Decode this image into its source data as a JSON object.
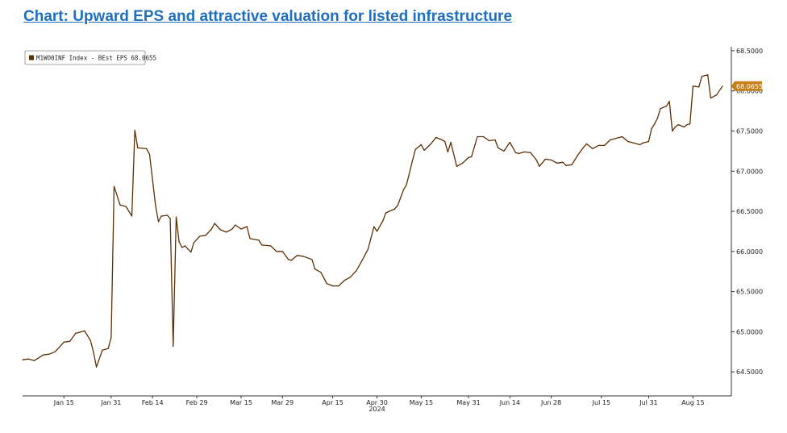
{
  "page": {
    "title": "Chart: Upward EPS and attractive valuation for listed infrastructure"
  },
  "chart_data": {
    "type": "line",
    "legend": {
      "label": "M1WO0INF Index - BEst EPS 68.0655",
      "position": "top-left"
    },
    "last_value_label": "68.0655",
    "x_tick_labels": [
      "Jan 15",
      "Jan 31",
      "Feb 14",
      "Feb 29",
      "Mar 15",
      "Mar 29",
      "Apr 15",
      "Apr 30",
      "May 15",
      "May 31",
      "Jun 14",
      "Jun 28",
      "Jul 15",
      "Jul 31",
      "Aug 15"
    ],
    "x_sublabel": "2024",
    "y_tick_labels": [
      "64.5000",
      "65.0000",
      "65.5000",
      "66.0000",
      "66.5000",
      "67.0000",
      "67.5000",
      "68.0000",
      "68.5000"
    ],
    "ylim": [
      64.2,
      68.55
    ],
    "xlim": [
      "2024-01-01",
      "2024-08-28"
    ],
    "grid": false,
    "line_color": "#5a3005",
    "series": [
      {
        "name": "M1WO0INF Index - BEst EPS",
        "points": [
          [
            "2024-01-01",
            64.65
          ],
          [
            "2024-01-03",
            64.66
          ],
          [
            "2024-01-05",
            64.64
          ],
          [
            "2024-01-08",
            64.71
          ],
          [
            "2024-01-10",
            64.72
          ],
          [
            "2024-01-12",
            64.75
          ],
          [
            "2024-01-15",
            64.87
          ],
          [
            "2024-01-17",
            64.88
          ],
          [
            "2024-01-19",
            64.98
          ],
          [
            "2024-01-22",
            65.01
          ],
          [
            "2024-01-24",
            64.89
          ],
          [
            "2024-01-25",
            64.75
          ],
          [
            "2024-01-26",
            64.56
          ],
          [
            "2024-01-28",
            64.77
          ],
          [
            "2024-01-30",
            64.79
          ],
          [
            "2024-01-31",
            64.93
          ],
          [
            "2024-02-01",
            66.81
          ],
          [
            "2024-02-03",
            66.58
          ],
          [
            "2024-02-05",
            66.56
          ],
          [
            "2024-02-07",
            66.44
          ],
          [
            "2024-02-08",
            67.51
          ],
          [
            "2024-02-09",
            67.29
          ],
          [
            "2024-02-12",
            67.28
          ],
          [
            "2024-02-13",
            67.21
          ],
          [
            "2024-02-15",
            66.58
          ],
          [
            "2024-02-16",
            66.37
          ],
          [
            "2024-02-17",
            66.44
          ],
          [
            "2024-02-19",
            66.45
          ],
          [
            "2024-02-20",
            66.41
          ],
          [
            "2024-02-21",
            64.82
          ],
          [
            "2024-02-22",
            66.43
          ],
          [
            "2024-02-23",
            66.12
          ],
          [
            "2024-02-24",
            66.05
          ],
          [
            "2024-02-25",
            66.07
          ],
          [
            "2024-02-27",
            65.99
          ],
          [
            "2024-02-28",
            66.11
          ],
          [
            "2024-03-01",
            66.19
          ],
          [
            "2024-03-03",
            66.2
          ],
          [
            "2024-03-05",
            66.28
          ],
          [
            "2024-03-06",
            66.35
          ],
          [
            "2024-03-08",
            66.27
          ],
          [
            "2024-03-10",
            66.24
          ],
          [
            "2024-03-12",
            66.28
          ],
          [
            "2024-03-13",
            66.33
          ],
          [
            "2024-03-15",
            66.28
          ],
          [
            "2024-03-17",
            66.31
          ],
          [
            "2024-03-18",
            66.16
          ],
          [
            "2024-03-21",
            66.14
          ],
          [
            "2024-03-22",
            66.08
          ],
          [
            "2024-03-25",
            66.07
          ],
          [
            "2024-03-27",
            66.0
          ],
          [
            "2024-03-29",
            66.0
          ],
          [
            "2024-03-31",
            65.9
          ],
          [
            "2024-04-01",
            65.89
          ],
          [
            "2024-04-03",
            65.95
          ],
          [
            "2024-04-05",
            65.94
          ],
          [
            "2024-04-08",
            65.9
          ],
          [
            "2024-04-09",
            65.78
          ],
          [
            "2024-04-11",
            65.74
          ],
          [
            "2024-04-13",
            65.6
          ],
          [
            "2024-04-15",
            65.57
          ],
          [
            "2024-04-17",
            65.57
          ],
          [
            "2024-04-19",
            65.64
          ],
          [
            "2024-04-21",
            65.68
          ],
          [
            "2024-04-23",
            65.76
          ],
          [
            "2024-04-25",
            65.89
          ],
          [
            "2024-04-27",
            66.03
          ],
          [
            "2024-04-29",
            66.31
          ],
          [
            "2024-04-30",
            66.25
          ],
          [
            "2024-05-02",
            66.38
          ],
          [
            "2024-05-03",
            66.48
          ],
          [
            "2024-05-06",
            66.53
          ],
          [
            "2024-05-07",
            66.57
          ],
          [
            "2024-05-09",
            66.77
          ],
          [
            "2024-05-10",
            66.83
          ],
          [
            "2024-05-12",
            67.13
          ],
          [
            "2024-05-13",
            67.27
          ],
          [
            "2024-05-15",
            67.33
          ],
          [
            "2024-05-16",
            67.26
          ],
          [
            "2024-05-18",
            67.33
          ],
          [
            "2024-05-20",
            67.42
          ],
          [
            "2024-05-22",
            67.39
          ],
          [
            "2024-05-23",
            67.37
          ],
          [
            "2024-05-24",
            67.24
          ],
          [
            "2024-05-25",
            67.36
          ],
          [
            "2024-05-27",
            67.06
          ],
          [
            "2024-05-29",
            67.1
          ],
          [
            "2024-05-31",
            67.17
          ],
          [
            "2024-06-01",
            67.18
          ],
          [
            "2024-06-03",
            67.43
          ],
          [
            "2024-06-05",
            67.43
          ],
          [
            "2024-06-07",
            67.38
          ],
          [
            "2024-06-09",
            67.39
          ],
          [
            "2024-06-10",
            67.29
          ],
          [
            "2024-06-12",
            67.25
          ],
          [
            "2024-06-14",
            67.36
          ],
          [
            "2024-06-16",
            67.23
          ],
          [
            "2024-06-17",
            67.22
          ],
          [
            "2024-06-19",
            67.24
          ],
          [
            "2024-06-21",
            67.23
          ],
          [
            "2024-06-23",
            67.14
          ],
          [
            "2024-06-24",
            67.06
          ],
          [
            "2024-06-26",
            67.15
          ],
          [
            "2024-06-28",
            67.14
          ],
          [
            "2024-06-30",
            67.1
          ],
          [
            "2024-07-02",
            67.11
          ],
          [
            "2024-07-03",
            67.07
          ],
          [
            "2024-07-05",
            67.08
          ],
          [
            "2024-07-07",
            67.2
          ],
          [
            "2024-07-09",
            67.3
          ],
          [
            "2024-07-10",
            67.34
          ],
          [
            "2024-07-12",
            67.28
          ],
          [
            "2024-07-14",
            67.32
          ],
          [
            "2024-07-16",
            67.32
          ],
          [
            "2024-07-18",
            67.39
          ],
          [
            "2024-07-20",
            67.41
          ],
          [
            "2024-07-22",
            67.43
          ],
          [
            "2024-07-24",
            67.37
          ],
          [
            "2024-07-26",
            67.35
          ],
          [
            "2024-07-28",
            67.33
          ],
          [
            "2024-07-29",
            67.35
          ],
          [
            "2024-07-31",
            67.37
          ],
          [
            "2024-08-01",
            67.53
          ],
          [
            "2024-08-02",
            67.59
          ],
          [
            "2024-08-03",
            67.66
          ],
          [
            "2024-08-04",
            67.78
          ],
          [
            "2024-08-06",
            67.81
          ],
          [
            "2024-08-07",
            67.87
          ],
          [
            "2024-08-08",
            67.5
          ],
          [
            "2024-08-09",
            67.55
          ],
          [
            "2024-08-10",
            67.58
          ],
          [
            "2024-08-12",
            67.55
          ],
          [
            "2024-08-13",
            67.58
          ],
          [
            "2024-08-14",
            67.59
          ],
          [
            "2024-08-15",
            68.06
          ],
          [
            "2024-08-17",
            68.05
          ],
          [
            "2024-08-18",
            68.18
          ],
          [
            "2024-08-20",
            68.2
          ],
          [
            "2024-08-21",
            67.91
          ],
          [
            "2024-08-23",
            67.95
          ],
          [
            "2024-08-25",
            68.06
          ]
        ]
      }
    ]
  }
}
